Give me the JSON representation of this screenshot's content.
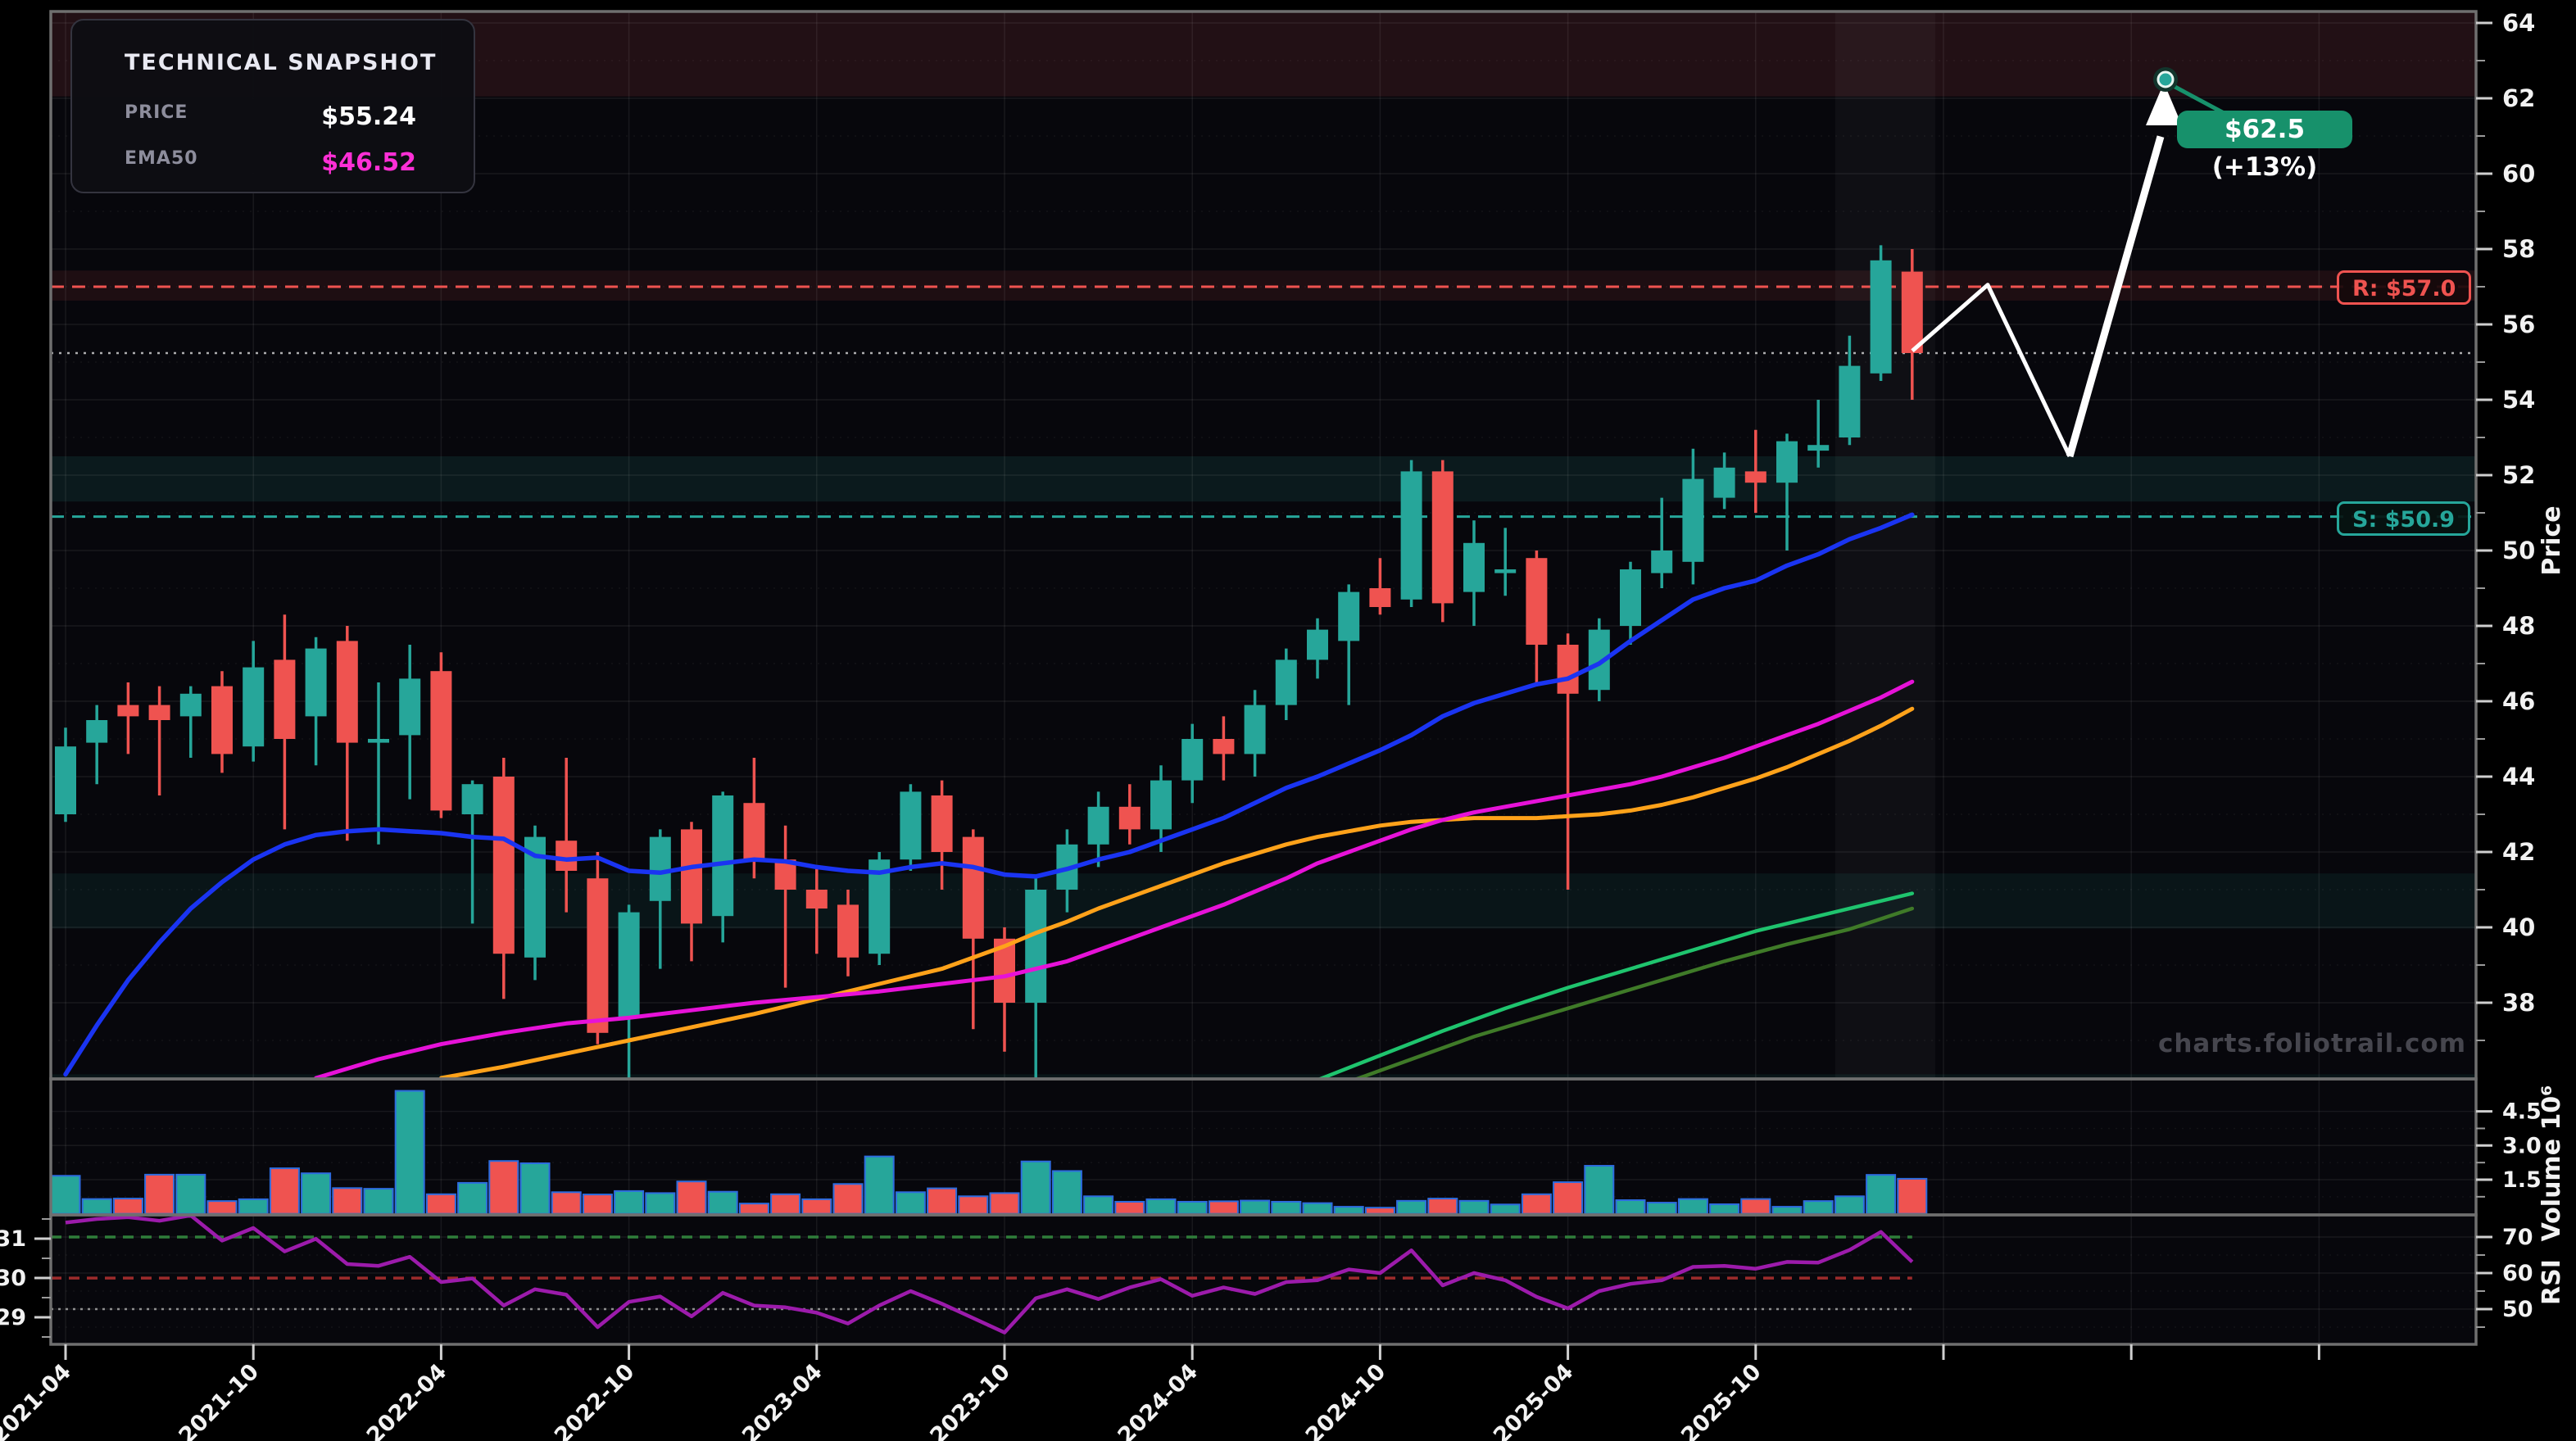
{
  "legend": {
    "title": "TECHNICAL SNAPSHOT",
    "rows": [
      {
        "label": "PRICE",
        "value": "$55.24"
      },
      {
        "label": "EMA50",
        "value": "$46.52"
      }
    ]
  },
  "watermark": "charts.foliotrail.com",
  "levels": {
    "resistance": {
      "label": "R: $57.0",
      "value": 57.0
    },
    "support": {
      "label": "S: $50.9",
      "value": 50.9
    },
    "current_price": 55.24
  },
  "annotation": {
    "label": "$62.5 (+13%)",
    "target_price": 62.5,
    "change": "+13%"
  },
  "axes": {
    "price": {
      "title": "Price",
      "ticks": [
        64,
        62,
        60,
        58,
        56,
        54,
        52,
        50,
        48,
        46,
        44,
        42,
        40,
        38
      ],
      "minor_ticks": [
        63,
        61,
        59,
        57,
        55,
        53,
        51,
        49,
        47,
        45,
        43,
        41,
        39,
        37
      ]
    },
    "volume": {
      "title": "Volume 10⁶",
      "ticks": [
        4.5,
        3.0,
        1.5
      ],
      "minor_ticks": [
        3.75,
        2.25,
        0.75
      ]
    },
    "rsi": {
      "title": "RSI",
      "ticks_right": [
        70,
        60,
        50
      ],
      "minor_ticks_right": [
        65,
        55,
        45
      ],
      "ticks_left": [
        31,
        30,
        29
      ]
    },
    "x": {
      "labels": [
        "2021-04",
        "2021-10",
        "2022-04",
        "2022-10",
        "2023-04",
        "2023-10",
        "2024-04",
        "2024-10",
        "2025-04",
        "2025-10"
      ],
      "label_months": [
        0,
        6,
        12,
        18,
        24,
        30,
        36,
        42,
        48,
        54
      ],
      "unlabeled_tick_months": [
        60,
        66,
        72
      ]
    }
  },
  "colors": {
    "up": "#26a69a",
    "down": "#ef5350",
    "ema_fast": "#1a34f2",
    "ema50": "#e612d8",
    "ema_slow": "#ffa21a",
    "trend_green": "#1fc46e",
    "trend_olive": "#3f7a28",
    "rsi_line": "#9c1bab",
    "rsi_overbought": "#2f7d3a",
    "rsi_mid": "#9c2b2b",
    "rsi_gray": "#8f8f8f",
    "resistance": "#ef5350",
    "support": "#26a69a",
    "current_dotted": "rgba(230,230,230,0.75)",
    "forecast": "#ffffff",
    "annotation_green": "#17916b",
    "panel_bg": "#07070c",
    "frame": "#6f6f6f",
    "grid": "rgba(255,255,255,0.07)",
    "band_red_top": "rgba(214,76,86,0.13)",
    "band_red_r": "rgba(239,83,80,0.10)",
    "band_teal": "rgba(38,166,154,0.12)",
    "volume_bar_edge": "#2d6cdf",
    "highlight_column": "rgba(255,255,255,0.035)"
  },
  "chart_data": {
    "type": "candlestick",
    "title": "",
    "x_unit": "month",
    "price_axis_range": [
      36.0,
      64.6
    ],
    "volume_unit": "10^6",
    "series_note": "candles: [date, open, high, low, close, volume_1e6, rsi]",
    "candles": [
      [
        "2021-04",
        43.0,
        45.3,
        42.8,
        44.8,
        1.67,
        74.0
      ],
      [
        "2021-05",
        44.9,
        45.9,
        43.8,
        45.5,
        0.65,
        75.0
      ],
      [
        "2021-06",
        45.9,
        46.5,
        44.6,
        45.6,
        0.67,
        75.5
      ],
      [
        "2021-07",
        45.9,
        46.4,
        43.5,
        45.5,
        1.72,
        74.5
      ],
      [
        "2021-08",
        45.6,
        46.4,
        44.5,
        46.2,
        1.72,
        76.0
      ],
      [
        "2021-09",
        46.4,
        46.8,
        44.1,
        44.6,
        0.56,
        69.0
      ],
      [
        "2021-10",
        44.8,
        47.6,
        44.4,
        46.9,
        0.64,
        72.5
      ],
      [
        "2021-11",
        47.1,
        48.3,
        42.6,
        45.0,
        2.0,
        66.0
      ],
      [
        "2021-12",
        45.6,
        47.7,
        44.3,
        47.4,
        1.78,
        69.5
      ],
      [
        "2022-01",
        47.6,
        48.0,
        42.3,
        44.9,
        1.13,
        62.5
      ],
      [
        "2022-02",
        44.9,
        46.5,
        42.2,
        45.0,
        1.1,
        62.0
      ],
      [
        "2022-03",
        45.1,
        47.5,
        43.4,
        46.6,
        5.4,
        64.5
      ],
      [
        "2022-04",
        46.8,
        47.3,
        42.9,
        43.1,
        0.86,
        57.5
      ],
      [
        "2022-05",
        43.0,
        43.9,
        40.1,
        43.8,
        1.36,
        58.5
      ],
      [
        "2022-06",
        44.0,
        44.5,
        38.1,
        39.3,
        2.32,
        51.0
      ],
      [
        "2022-07",
        39.2,
        42.7,
        38.6,
        42.4,
        2.22,
        55.5
      ],
      [
        "2022-08",
        42.3,
        44.5,
        40.4,
        41.5,
        0.95,
        54.0
      ],
      [
        "2022-09",
        41.3,
        42.0,
        36.9,
        37.2,
        0.85,
        45.0
      ],
      [
        "2022-10",
        37.6,
        40.6,
        36.0,
        40.4,
        1.0,
        52.0
      ],
      [
        "2022-11",
        40.7,
        42.6,
        38.9,
        42.4,
        0.91,
        53.5
      ],
      [
        "2022-12",
        42.6,
        42.8,
        39.1,
        40.1,
        1.42,
        48.0
      ],
      [
        "2023-01",
        40.3,
        43.6,
        39.6,
        43.5,
        0.97,
        54.5
      ],
      [
        "2023-02",
        43.3,
        44.5,
        41.3,
        41.8,
        0.45,
        51.0
      ],
      [
        "2023-03",
        41.8,
        42.7,
        38.4,
        41.0,
        0.86,
        50.5
      ],
      [
        "2023-04",
        41.0,
        41.6,
        39.3,
        40.5,
        0.64,
        49.0
      ],
      [
        "2023-05",
        40.6,
        41.0,
        38.7,
        39.2,
        1.31,
        46.0
      ],
      [
        "2023-06",
        39.3,
        42.0,
        39.0,
        41.8,
        2.52,
        51.0
      ],
      [
        "2023-07",
        41.8,
        43.8,
        41.5,
        43.6,
        0.95,
        55.0
      ],
      [
        "2023-08",
        43.5,
        43.9,
        41.0,
        42.0,
        1.12,
        51.5
      ],
      [
        "2023-09",
        42.4,
        42.6,
        37.3,
        39.7,
        0.77,
        47.5
      ],
      [
        "2023-10",
        39.7,
        40.0,
        36.7,
        38.0,
        0.91,
        43.5
      ],
      [
        "2023-11",
        38.0,
        41.3,
        35.9,
        41.0,
        2.3,
        53.0
      ],
      [
        "2023-12",
        41.0,
        42.6,
        40.4,
        42.2,
        1.88,
        55.5
      ],
      [
        "2024-01",
        42.2,
        43.6,
        41.6,
        43.2,
        0.77,
        52.8
      ],
      [
        "2024-02",
        43.2,
        43.8,
        42.2,
        42.6,
        0.53,
        56.0
      ],
      [
        "2024-03",
        42.6,
        44.3,
        42.0,
        43.9,
        0.64,
        58.3
      ],
      [
        "2024-04",
        43.9,
        45.4,
        43.3,
        45.0,
        0.53,
        53.7
      ],
      [
        "2024-05",
        45.0,
        45.6,
        43.9,
        44.6,
        0.55,
        56.0
      ],
      [
        "2024-06",
        44.6,
        46.3,
        44.0,
        45.9,
        0.58,
        54.2
      ],
      [
        "2024-07",
        45.9,
        47.4,
        45.5,
        47.1,
        0.53,
        57.5
      ],
      [
        "2024-08",
        47.1,
        48.2,
        46.6,
        47.9,
        0.47,
        58.0
      ],
      [
        "2024-09",
        47.6,
        49.1,
        45.9,
        48.9,
        0.31,
        61.0
      ],
      [
        "2024-10",
        49.0,
        49.8,
        48.3,
        48.5,
        0.27,
        60.0
      ],
      [
        "2024-11",
        48.7,
        52.4,
        48.5,
        52.1,
        0.57,
        66.3
      ],
      [
        "2024-12",
        52.1,
        52.4,
        48.1,
        48.6,
        0.67,
        56.6
      ],
      [
        "2025-01",
        48.9,
        50.8,
        48.0,
        50.2,
        0.57,
        60.0
      ],
      [
        "2025-02",
        49.4,
        50.6,
        48.8,
        49.5,
        0.41,
        58.0
      ],
      [
        "2025-03",
        49.8,
        50.0,
        46.4,
        47.5,
        0.86,
        53.4
      ],
      [
        "2025-04",
        47.5,
        47.8,
        41.0,
        46.2,
        1.39,
        50.2
      ],
      [
        "2025-05",
        46.3,
        48.2,
        46.0,
        47.9,
        2.11,
        55.0
      ],
      [
        "2025-06",
        48.0,
        49.7,
        47.5,
        49.5,
        0.6,
        57.0
      ],
      [
        "2025-07",
        49.4,
        51.4,
        49.0,
        50.0,
        0.49,
        58.0
      ],
      [
        "2025-08",
        49.7,
        52.7,
        49.1,
        51.9,
        0.65,
        61.7
      ],
      [
        "2025-09",
        51.4,
        52.6,
        51.1,
        52.2,
        0.42,
        62.0
      ],
      [
        "2025-10",
        52.1,
        53.2,
        51.0,
        51.8,
        0.65,
        61.2
      ],
      [
        "2025-11",
        51.8,
        53.1,
        50.0,
        52.9,
        0.31,
        63.1
      ],
      [
        "2025-12",
        52.65,
        54.0,
        52.2,
        52.8,
        0.56,
        62.9
      ],
      [
        "2026-01",
        53.0,
        55.7,
        52.8,
        54.9,
        0.77,
        66.4
      ],
      [
        "2026-02",
        54.7,
        58.1,
        54.5,
        57.7,
        1.71,
        71.4
      ],
      [
        "2026-03",
        57.4,
        58.0,
        54.0,
        55.24,
        1.54,
        63.1
      ]
    ],
    "overlays": {
      "ema_fast": [
        [
          0,
          36.1
        ],
        [
          1,
          37.4
        ],
        [
          2,
          38.6
        ],
        [
          3,
          39.6
        ],
        [
          4,
          40.5
        ],
        [
          5,
          41.2
        ],
        [
          6,
          41.8
        ],
        [
          7,
          42.2
        ],
        [
          8,
          42.45
        ],
        [
          9,
          42.55
        ],
        [
          10,
          42.6
        ],
        [
          11,
          42.55
        ],
        [
          12,
          42.5
        ],
        [
          13,
          42.4
        ],
        [
          14,
          42.35
        ],
        [
          15,
          41.9
        ],
        [
          16,
          41.8
        ],
        [
          17,
          41.85
        ],
        [
          18,
          41.5
        ],
        [
          19,
          41.45
        ],
        [
          20,
          41.6
        ],
        [
          21,
          41.7
        ],
        [
          22,
          41.8
        ],
        [
          23,
          41.75
        ],
        [
          24,
          41.6
        ],
        [
          25,
          41.5
        ],
        [
          26,
          41.45
        ],
        [
          27,
          41.6
        ],
        [
          28,
          41.7
        ],
        [
          29,
          41.6
        ],
        [
          30,
          41.4
        ],
        [
          31,
          41.35
        ],
        [
          32,
          41.55
        ],
        [
          33,
          41.8
        ],
        [
          34,
          42.0
        ],
        [
          35,
          42.3
        ],
        [
          36,
          42.6
        ],
        [
          37,
          42.9
        ],
        [
          38,
          43.3
        ],
        [
          39,
          43.7
        ],
        [
          40,
          44.0
        ],
        [
          41,
          44.35
        ],
        [
          42,
          44.7
        ],
        [
          43,
          45.1
        ],
        [
          44,
          45.6
        ],
        [
          45,
          45.95
        ],
        [
          46,
          46.2
        ],
        [
          47,
          46.45
        ],
        [
          48,
          46.6
        ],
        [
          49,
          47.0
        ],
        [
          50,
          47.6
        ],
        [
          51,
          48.15
        ],
        [
          52,
          48.7
        ],
        [
          53,
          49.0
        ],
        [
          54,
          49.2
        ],
        [
          55,
          49.6
        ],
        [
          56,
          49.9
        ],
        [
          57,
          50.3
        ],
        [
          58,
          50.6
        ],
        [
          59,
          50.95
        ]
      ],
      "ema50": [
        [
          8,
          36.0
        ],
        [
          10,
          36.5
        ],
        [
          12,
          36.9
        ],
        [
          14,
          37.2
        ],
        [
          16,
          37.45
        ],
        [
          18,
          37.6
        ],
        [
          20,
          37.8
        ],
        [
          22,
          38.0
        ],
        [
          24,
          38.15
        ],
        [
          26,
          38.3
        ],
        [
          28,
          38.5
        ],
        [
          30,
          38.7
        ],
        [
          31,
          38.9
        ],
        [
          32,
          39.1
        ],
        [
          33,
          39.4
        ],
        [
          34,
          39.7
        ],
        [
          35,
          40.0
        ],
        [
          36,
          40.3
        ],
        [
          37,
          40.6
        ],
        [
          38,
          40.95
        ],
        [
          39,
          41.3
        ],
        [
          40,
          41.7
        ],
        [
          41,
          42.0
        ],
        [
          42,
          42.3
        ],
        [
          43,
          42.6
        ],
        [
          44,
          42.85
        ],
        [
          45,
          43.05
        ],
        [
          46,
          43.2
        ],
        [
          47,
          43.35
        ],
        [
          48,
          43.5
        ],
        [
          49,
          43.65
        ],
        [
          50,
          43.8
        ],
        [
          51,
          44.0
        ],
        [
          52,
          44.25
        ],
        [
          53,
          44.5
        ],
        [
          54,
          44.8
        ],
        [
          55,
          45.1
        ],
        [
          56,
          45.4
        ],
        [
          57,
          45.75
        ],
        [
          58,
          46.1
        ],
        [
          59,
          46.52
        ]
      ],
      "ema_slow": [
        [
          12,
          36.0
        ],
        [
          14,
          36.3
        ],
        [
          16,
          36.65
        ],
        [
          18,
          37.0
        ],
        [
          20,
          37.35
        ],
        [
          22,
          37.7
        ],
        [
          24,
          38.1
        ],
        [
          26,
          38.5
        ],
        [
          28,
          38.9
        ],
        [
          30,
          39.5
        ],
        [
          31,
          39.85
        ],
        [
          32,
          40.15
        ],
        [
          33,
          40.5
        ],
        [
          34,
          40.8
        ],
        [
          35,
          41.1
        ],
        [
          36,
          41.4
        ],
        [
          37,
          41.7
        ],
        [
          38,
          41.95
        ],
        [
          39,
          42.2
        ],
        [
          40,
          42.4
        ],
        [
          41,
          42.55
        ],
        [
          42,
          42.7
        ],
        [
          43,
          42.8
        ],
        [
          44,
          42.85
        ],
        [
          45,
          42.9
        ],
        [
          46,
          42.9
        ],
        [
          47,
          42.9
        ],
        [
          48,
          42.95
        ],
        [
          49,
          43.0
        ],
        [
          50,
          43.1
        ],
        [
          51,
          43.25
        ],
        [
          52,
          43.45
        ],
        [
          53,
          43.7
        ],
        [
          54,
          43.95
        ],
        [
          55,
          44.25
        ],
        [
          56,
          44.6
        ],
        [
          57,
          44.95
        ],
        [
          58,
          45.35
        ],
        [
          59,
          45.8
        ]
      ],
      "trend_green": [
        [
          40,
          35.95
        ],
        [
          42,
          36.6
        ],
        [
          44,
          37.25
        ],
        [
          46,
          37.85
        ],
        [
          48,
          38.4
        ],
        [
          50,
          38.9
        ],
        [
          52,
          39.4
        ],
        [
          54,
          39.9
        ],
        [
          56,
          40.3
        ],
        [
          58,
          40.7
        ],
        [
          59,
          40.9
        ]
      ],
      "trend_olive": [
        [
          41,
          35.9
        ],
        [
          43,
          36.5
        ],
        [
          45,
          37.1
        ],
        [
          47,
          37.6
        ],
        [
          49,
          38.1
        ],
        [
          51,
          38.6
        ],
        [
          53,
          39.1
        ],
        [
          55,
          39.55
        ],
        [
          57,
          39.95
        ],
        [
          59,
          40.5
        ]
      ]
    },
    "bands_price": [
      {
        "from": 62.05,
        "to": 64.55,
        "kind": "red"
      },
      {
        "from": 56.63,
        "to": 57.43,
        "kind": "red_soft"
      },
      {
        "from": 51.3,
        "to": 52.5,
        "kind": "teal"
      },
      {
        "from": 39.97,
        "to": 41.43,
        "kind": "teal_soft"
      },
      {
        "from": 35.5,
        "to": 36.1,
        "kind": "teal_soft"
      }
    ],
    "rsi_threshold_lines": {
      "green_dashed_rsi": 70,
      "red_dashed_rsi": 58.6,
      "gray_dotted_rsi": 50
    },
    "forecast_path_x_price": [
      [
        2334,
        55.3
      ],
      [
        2426,
        57.05
      ],
      [
        2526,
        52.5
      ],
      [
        2637,
        61.9
      ]
    ],
    "forecast_marker_x_price": [
      2643,
      62.5
    ],
    "highlight_column_x": [
      2240,
      2362
    ],
    "legend_position": "top-left",
    "grid": "on"
  }
}
